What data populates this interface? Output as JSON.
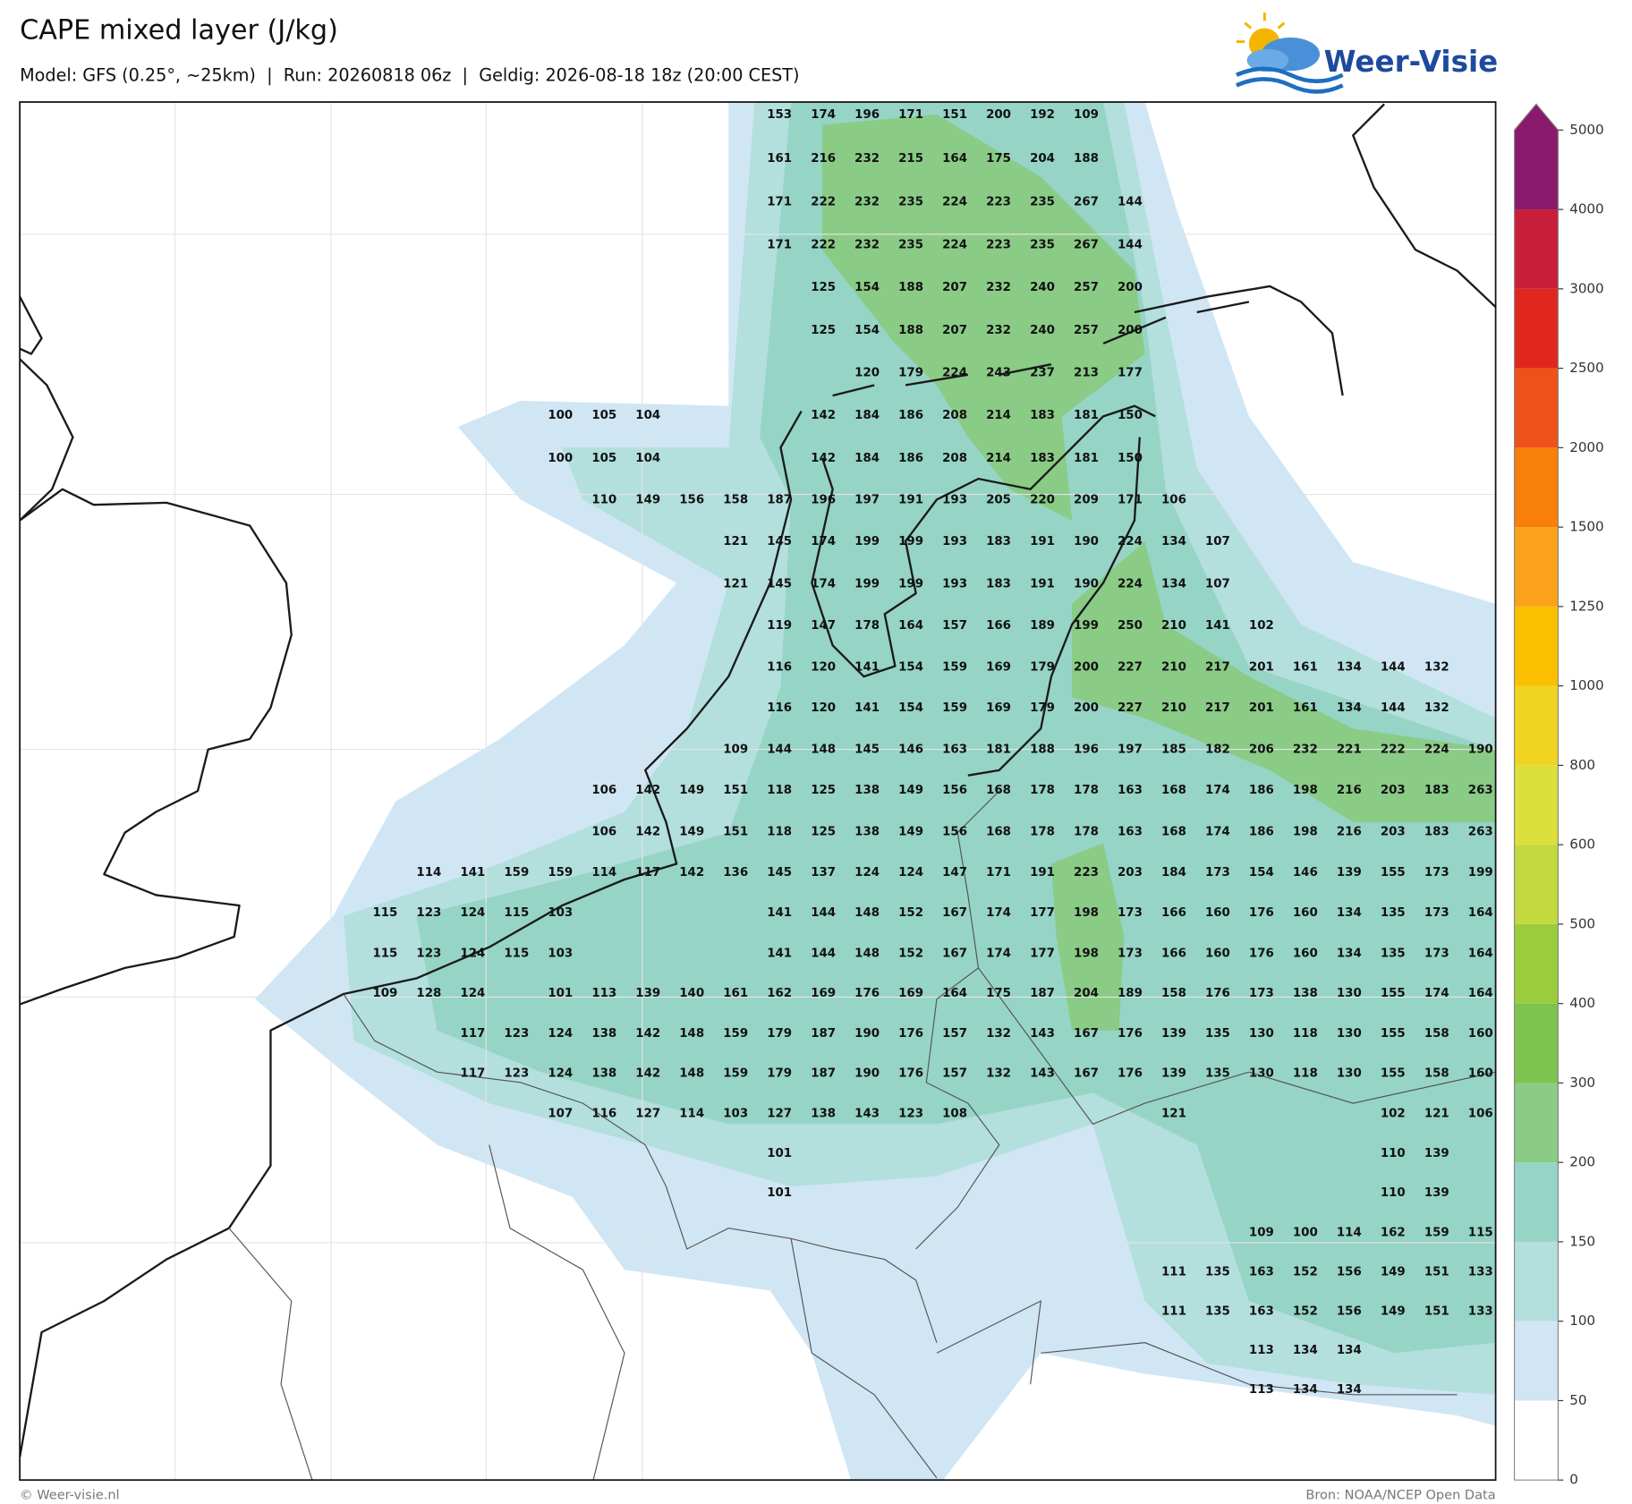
{
  "header": {
    "title": "CAPE mixed layer (J/kg)",
    "subtitle": "Model: GFS (0.25°, ~25km)  |  Run: 20260818 06z  |  Geldig: 2026-08-18 18z (20:00 CEST)"
  },
  "logo": {
    "text": "Weer-Visie"
  },
  "map": {
    "grid_labels": [
      [
        null,
        null,
        null,
        null,
        null,
        null,
        null,
        null,
        null,
        153,
        174,
        196,
        171,
        151,
        200,
        192,
        109,
        null,
        null,
        null,
        null,
        null,
        null,
        null,
        null,
        null
      ],
      [
        null,
        null,
        null,
        null,
        null,
        null,
        null,
        null,
        null,
        161,
        216,
        232,
        215,
        164,
        175,
        204,
        188,
        null,
        null,
        null,
        null,
        null,
        null,
        null,
        null,
        null
      ],
      [
        null,
        null,
        null,
        null,
        null,
        null,
        null,
        null,
        null,
        171,
        222,
        232,
        235,
        224,
        223,
        235,
        267,
        144,
        null,
        null,
        null,
        null,
        null,
        null,
        null,
        null
      ],
      [
        null,
        null,
        null,
        null,
        null,
        null,
        null,
        null,
        null,
        171,
        222,
        232,
        235,
        224,
        223,
        235,
        267,
        144,
        null,
        null,
        null,
        null,
        null,
        null,
        null,
        null
      ],
      [
        null,
        null,
        null,
        null,
        null,
        null,
        null,
        null,
        null,
        null,
        125,
        154,
        188,
        207,
        232,
        240,
        257,
        200,
        null,
        null,
        null,
        null,
        null,
        null,
        null,
        null
      ],
      [
        null,
        null,
        null,
        null,
        null,
        null,
        null,
        null,
        null,
        null,
        125,
        154,
        188,
        207,
        232,
        240,
        257,
        200,
        null,
        null,
        null,
        null,
        null,
        null,
        null,
        null
      ],
      [
        null,
        null,
        null,
        null,
        null,
        null,
        null,
        null,
        null,
        null,
        null,
        120,
        179,
        224,
        243,
        237,
        213,
        177,
        null,
        null,
        null,
        null,
        null,
        null,
        null,
        null
      ],
      [
        null,
        null,
        null,
        null,
        100,
        105,
        104,
        null,
        null,
        null,
        142,
        184,
        186,
        208,
        214,
        183,
        181,
        150,
        null,
        null,
        null,
        null,
        null,
        null,
        null,
        null
      ],
      [
        null,
        null,
        null,
        null,
        100,
        105,
        104,
        null,
        null,
        null,
        142,
        184,
        186,
        208,
        214,
        183,
        181,
        150,
        null,
        null,
        null,
        null,
        null,
        null,
        null,
        null
      ],
      [
        null,
        null,
        null,
        null,
        null,
        110,
        149,
        156,
        158,
        187,
        196,
        197,
        191,
        193,
        205,
        220,
        209,
        171,
        106,
        null,
        null,
        null,
        null,
        null,
        null,
        null
      ],
      [
        null,
        null,
        null,
        null,
        null,
        null,
        null,
        null,
        121,
        145,
        174,
        199,
        199,
        193,
        183,
        191,
        190,
        224,
        134,
        107,
        null,
        null,
        null,
        null,
        null,
        null
      ],
      [
        null,
        null,
        null,
        null,
        null,
        null,
        null,
        null,
        121,
        145,
        174,
        199,
        199,
        193,
        183,
        191,
        190,
        224,
        134,
        107,
        null,
        null,
        null,
        null,
        null,
        null
      ],
      [
        null,
        null,
        null,
        null,
        null,
        null,
        null,
        null,
        null,
        119,
        147,
        178,
        164,
        157,
        166,
        189,
        199,
        250,
        210,
        141,
        102,
        null,
        null,
        null,
        null,
        null
      ],
      [
        null,
        null,
        null,
        null,
        null,
        null,
        null,
        null,
        null,
        116,
        120,
        141,
        154,
        159,
        169,
        179,
        200,
        227,
        210,
        217,
        201,
        161,
        134,
        144,
        132,
        null
      ],
      [
        null,
        null,
        null,
        null,
        null,
        null,
        null,
        null,
        null,
        116,
        120,
        141,
        154,
        159,
        169,
        179,
        200,
        227,
        210,
        217,
        201,
        161,
        134,
        144,
        132,
        null
      ],
      [
        null,
        null,
        null,
        null,
        null,
        null,
        null,
        null,
        109,
        144,
        148,
        145,
        146,
        163,
        181,
        188,
        196,
        197,
        185,
        182,
        206,
        232,
        221,
        222,
        224,
        190
      ],
      [
        null,
        null,
        null,
        null,
        null,
        106,
        142,
        149,
        151,
        118,
        125,
        138,
        149,
        156,
        168,
        178,
        178,
        163,
        168,
        174,
        186,
        198,
        216,
        203,
        183,
        263
      ],
      [
        null,
        null,
        null,
        null,
        null,
        106,
        142,
        149,
        151,
        118,
        125,
        138,
        149,
        156,
        168,
        178,
        178,
        163,
        168,
        174,
        186,
        198,
        216,
        203,
        183,
        263
      ],
      [
        null,
        114,
        141,
        159,
        159,
        114,
        117,
        142,
        136,
        145,
        137,
        124,
        124,
        147,
        171,
        191,
        223,
        203,
        184,
        173,
        154,
        146,
        139,
        155,
        173,
        199
      ],
      [
        115,
        123,
        124,
        115,
        103,
        null,
        null,
        null,
        null,
        141,
        144,
        148,
        152,
        167,
        174,
        177,
        198,
        173,
        166,
        160,
        176,
        160,
        134,
        135,
        173,
        164
      ],
      [
        115,
        123,
        124,
        115,
        103,
        null,
        null,
        null,
        null,
        141,
        144,
        148,
        152,
        167,
        174,
        177,
        198,
        173,
        166,
        160,
        176,
        160,
        134,
        135,
        173,
        164
      ],
      [
        109,
        128,
        124,
        null,
        101,
        113,
        139,
        140,
        161,
        162,
        169,
        176,
        169,
        164,
        175,
        187,
        204,
        189,
        158,
        176,
        173,
        138,
        130,
        155,
        174,
        164
      ],
      [
        null,
        null,
        117,
        123,
        124,
        138,
        142,
        148,
        159,
        179,
        187,
        190,
        176,
        157,
        132,
        143,
        167,
        176,
        139,
        135,
        130,
        118,
        130,
        155,
        158,
        160
      ],
      [
        null,
        null,
        117,
        123,
        124,
        138,
        142,
        148,
        159,
        179,
        187,
        190,
        176,
        157,
        132,
        143,
        167,
        176,
        139,
        135,
        130,
        118,
        130,
        155,
        158,
        160
      ],
      [
        null,
        null,
        null,
        null,
        107,
        116,
        127,
        114,
        103,
        127,
        138,
        143,
        123,
        108,
        null,
        null,
        null,
        null,
        121,
        null,
        null,
        null,
        null,
        102,
        121,
        106
      ],
      [
        null,
        null,
        null,
        null,
        null,
        null,
        null,
        null,
        null,
        101,
        null,
        null,
        null,
        null,
        null,
        null,
        null,
        null,
        null,
        null,
        null,
        null,
        null,
        110,
        139,
        null
      ],
      [
        null,
        null,
        null,
        null,
        null,
        null,
        null,
        null,
        null,
        101,
        null,
        null,
        null,
        null,
        null,
        null,
        null,
        null,
        null,
        null,
        null,
        null,
        null,
        110,
        139,
        null
      ],
      [
        null,
        null,
        null,
        null,
        null,
        null,
        null,
        null,
        null,
        null,
        null,
        null,
        null,
        null,
        null,
        null,
        null,
        null,
        null,
        null,
        109,
        100,
        114,
        162,
        159,
        115
      ],
      [
        null,
        null,
        null,
        null,
        null,
        null,
        null,
        null,
        null,
        null,
        null,
        null,
        null,
        null,
        null,
        null,
        null,
        null,
        111,
        135,
        163,
        152,
        156,
        149,
        151,
        133
      ],
      [
        null,
        null,
        null,
        null,
        null,
        null,
        null,
        null,
        null,
        null,
        null,
        null,
        null,
        null,
        null,
        null,
        null,
        null,
        111,
        135,
        163,
        152,
        156,
        149,
        151,
        133
      ],
      [
        null,
        null,
        null,
        null,
        null,
        null,
        null,
        null,
        null,
        null,
        null,
        null,
        null,
        null,
        null,
        null,
        null,
        null,
        null,
        null,
        113,
        134,
        134,
        null,
        null,
        null
      ],
      [
        null,
        null,
        null,
        null,
        null,
        null,
        null,
        null,
        null,
        null,
        null,
        null,
        null,
        null,
        null,
        null,
        null,
        null,
        null,
        null,
        113,
        134,
        134,
        null,
        null,
        null
      ]
    ]
  },
  "colorbar": {
    "ticks": [
      0,
      50,
      100,
      150,
      200,
      300,
      400,
      500,
      600,
      800,
      1000,
      1250,
      1500,
      2000,
      2500,
      3000,
      4000,
      5000
    ],
    "colors": [
      "#ffffff",
      "#d0e6f5",
      "#b3dfdd",
      "#96d4c6",
      "#8acb86",
      "#7cc350",
      "#9acd3c",
      "#c2d940",
      "#dde03a",
      "#f1d322",
      "#fbc000",
      "#fba21a",
      "#f77f0a",
      "#ee5218",
      "#e0271e",
      "#c81e3a",
      "#8a1a6b"
    ]
  },
  "footer": {
    "left": "© Weer-visie.nl",
    "right": "Bron: NOAA/NCEP Open Data"
  }
}
